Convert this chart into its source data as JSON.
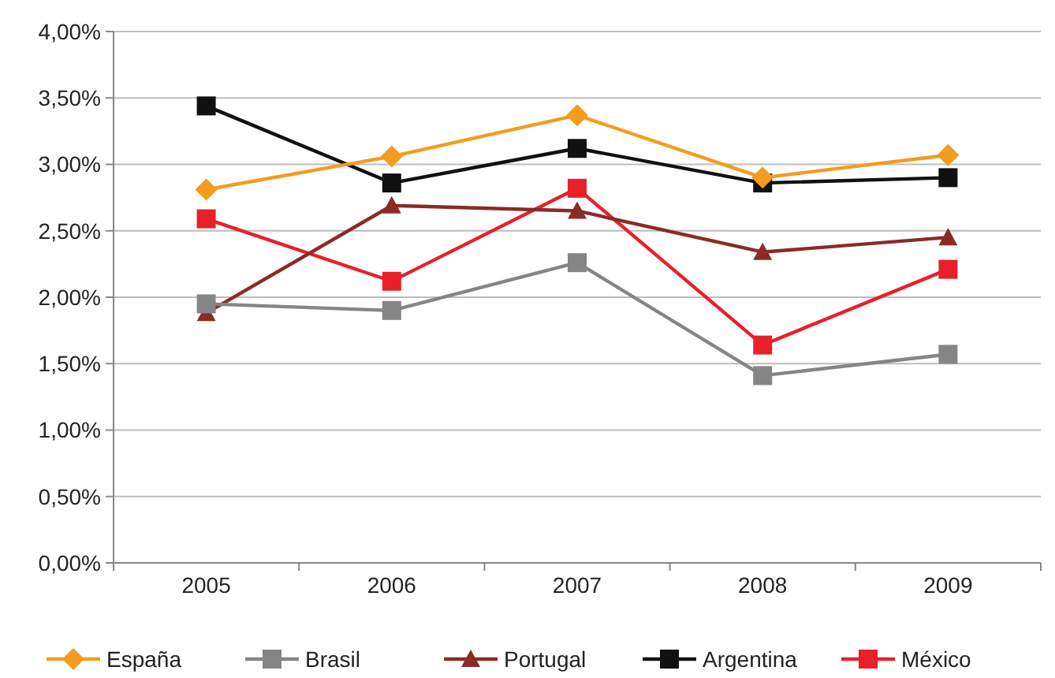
{
  "chart_data": {
    "type": "line",
    "categories": [
      "2005",
      "2006",
      "2007",
      "2008",
      "2009"
    ],
    "series": [
      {
        "name": "España",
        "color": "#f39c1f",
        "marker": "diamond",
        "values": [
          2.81,
          3.06,
          3.37,
          2.9,
          3.07
        ]
      },
      {
        "name": "Brasil",
        "color": "#858585",
        "marker": "square",
        "values": [
          1.95,
          1.9,
          2.26,
          1.41,
          1.57
        ]
      },
      {
        "name": "Portugal",
        "color": "#8b2a27",
        "marker": "triangle",
        "values": [
          1.88,
          2.69,
          2.65,
          2.34,
          2.45
        ]
      },
      {
        "name": "Argentina",
        "color": "#111111",
        "marker": "square",
        "values": [
          3.44,
          2.86,
          3.12,
          2.86,
          2.9
        ]
      },
      {
        "name": "México",
        "color": "#e8202a",
        "marker": "square",
        "values": [
          2.59,
          2.12,
          2.82,
          1.64,
          2.21
        ]
      }
    ],
    "ylim": [
      0,
      4
    ],
    "yticks": [
      {
        "value": 0,
        "label": "0,00%"
      },
      {
        "value": 0.5,
        "label": "0,50%"
      },
      {
        "value": 1,
        "label": "1,00%"
      },
      {
        "value": 1.5,
        "label": "1,50%"
      },
      {
        "value": 2,
        "label": "2,00%"
      },
      {
        "value": 2.5,
        "label": "2,50%"
      },
      {
        "value": 3,
        "label": "3,00%"
      },
      {
        "value": 3.5,
        "label": "3,50%"
      },
      {
        "value": 4,
        "label": "4,00%"
      }
    ],
    "grid": "y",
    "legend": "bottom",
    "line_style": "solid"
  }
}
